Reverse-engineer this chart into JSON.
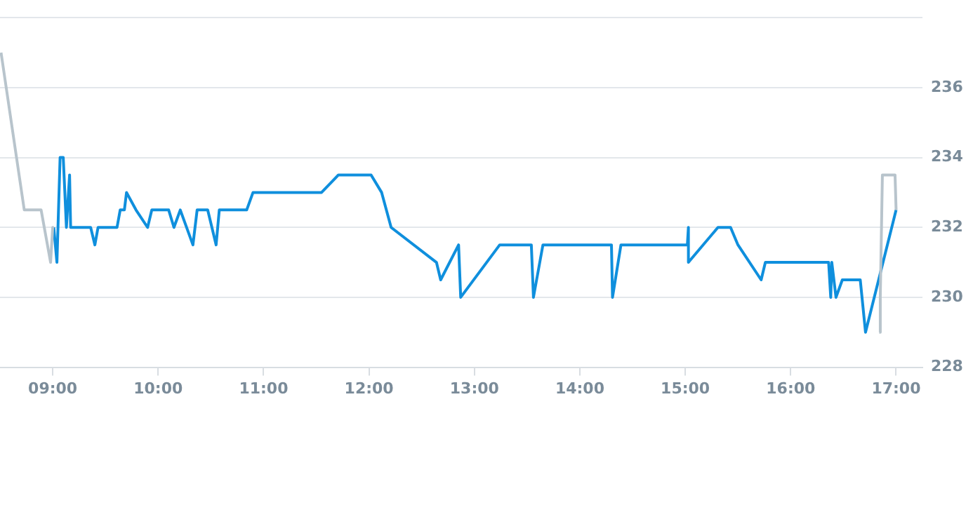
{
  "chart_data": {
    "type": "line",
    "xlim": [
      8.5,
      17.25
    ],
    "ylim": [
      228,
      238
    ],
    "xticks": [
      {
        "value": 9,
        "label": "09:00"
      },
      {
        "value": 10,
        "label": "10:00"
      },
      {
        "value": 11,
        "label": "11:00"
      },
      {
        "value": 12,
        "label": "12:00"
      },
      {
        "value": 13,
        "label": "13:00"
      },
      {
        "value": 14,
        "label": "14:00"
      },
      {
        "value": 15,
        "label": "15:00"
      },
      {
        "value": 16,
        "label": "16:00"
      },
      {
        "value": 17,
        "label": "17:00"
      }
    ],
    "yticks": [
      228,
      230,
      232,
      234,
      236,
      {
        "value": 238,
        "label": null
      }
    ],
    "grid": "y",
    "legend": false,
    "marker": "none",
    "line_style": "solid",
    "series": [
      {
        "color": "#b8c4cc",
        "x": [
          8.51,
          8.73,
          8.89,
          8.98,
          9.0,
          9.01
        ],
        "values": [
          237,
          232.5,
          232.5,
          231,
          232,
          232
        ]
      },
      {
        "color": "#b8c4cc",
        "x": [
          16.84,
          16.85,
          16.87,
          16.99,
          17.0
        ],
        "values": [
          229,
          230,
          233.5,
          233.5,
          232.5
        ]
      },
      {
        "color": "#0f8fdd",
        "x": [
          9.01,
          9.04,
          9.07,
          9.1,
          9.13,
          9.16,
          9.17,
          9.36,
          9.4,
          9.43,
          9.61,
          9.64,
          9.68,
          9.7,
          9.79,
          9.9,
          9.94,
          10.1,
          10.15,
          10.21,
          10.33,
          10.37,
          10.47,
          10.55,
          10.58,
          10.84,
          10.9,
          11.55,
          11.71,
          12.02,
          12.12,
          12.21,
          12.64,
          12.68,
          12.85,
          12.87,
          13.24,
          13.54,
          13.56,
          13.65,
          14.3,
          14.31,
          14.39,
          15.02,
          15.03,
          15.03,
          15.31,
          15.43,
          15.5,
          15.72,
          15.76,
          16.36,
          16.38,
          16.39,
          16.43,
          16.49,
          16.66,
          16.71,
          17.0
        ],
        "values": [
          232,
          231,
          234,
          234,
          232,
          233.5,
          232,
          232,
          231.5,
          232,
          232,
          232.5,
          232.5,
          233,
          232.5,
          232,
          232.5,
          232.5,
          232,
          232.5,
          231.5,
          232.5,
          232.5,
          231.5,
          232.5,
          232.5,
          233,
          233,
          233.5,
          233.5,
          233,
          232,
          231,
          230.5,
          231.5,
          230,
          231.5,
          231.5,
          230,
          231.5,
          231.5,
          230,
          231.5,
          231.5,
          232,
          231,
          232,
          232,
          231.5,
          230.5,
          231,
          231,
          230,
          231,
          230,
          230.5,
          230.5,
          229,
          232.5
        ]
      }
    ]
  }
}
